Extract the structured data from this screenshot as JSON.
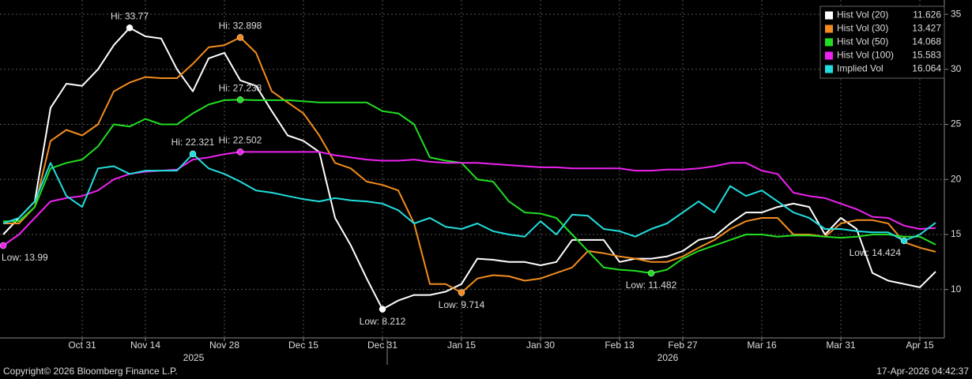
{
  "chart_data": {
    "type": "line",
    "categories": [
      null,
      null,
      null,
      null,
      null,
      "Oct 31",
      null,
      null,
      null,
      "Nov 14",
      null,
      null,
      null,
      null,
      "Nov 28",
      null,
      null,
      null,
      null,
      "Dec 15",
      null,
      null,
      null,
      null,
      "Dec 31",
      null,
      null,
      null,
      null,
      "Jan 15",
      null,
      null,
      null,
      null,
      "Jan 30",
      null,
      null,
      null,
      null,
      "Feb 13",
      null,
      null,
      null,
      "Feb 27",
      null,
      null,
      null,
      null,
      "Mar 16",
      null,
      null,
      null,
      null,
      "Mar 31",
      null,
      null,
      null,
      null,
      "Apr 15",
      null
    ],
    "years": [
      "2025",
      "2026"
    ],
    "series": [
      {
        "name": "Hist Vol (20)",
        "color": "#ffffff",
        "hi_label": "Hi: 33.77",
        "low_label": "Low: 8.212",
        "values": [
          15.0,
          16.5,
          18,
          26.5,
          28.7,
          28.5,
          30,
          32.2,
          33.77,
          33,
          32.8,
          30,
          28,
          31,
          31.5,
          29,
          28.5,
          26.2,
          24,
          23.5,
          22.5,
          16.5,
          14,
          11,
          8.212,
          9,
          9.5,
          9.5,
          9.8,
          10.5,
          12.8,
          12.7,
          12.5,
          12.5,
          12.2,
          12.5,
          14.5,
          14.5,
          14.5,
          12.5,
          12.8,
          12.8,
          13,
          13.5,
          14.5,
          14.8,
          16,
          17,
          17,
          17.5,
          17.8,
          17.5,
          15,
          16.5,
          15.5,
          11.5,
          10.8,
          10.5,
          10.2,
          11.626
        ]
      },
      {
        "name": "Hist Vol (30)",
        "color": "#f28c1e",
        "hi_label": "Hi: 32.898",
        "low_label": "Low: 9.714",
        "values": [
          16,
          16,
          17.5,
          23.5,
          24.5,
          24,
          25,
          28,
          28.8,
          29.3,
          29.2,
          29.2,
          30.5,
          32,
          32.2,
          32.898,
          31.5,
          28,
          27,
          26,
          24,
          21.5,
          21,
          19.8,
          19.5,
          19,
          16,
          10.5,
          10.5,
          9.714,
          11,
          11.3,
          11.2,
          10.8,
          11,
          11.5,
          12,
          13.5,
          13.3,
          13,
          12.8,
          12.5,
          12.5,
          13,
          13.8,
          14.5,
          15.5,
          16.2,
          16.5,
          16.5,
          15,
          15,
          14.8,
          16,
          16.3,
          16.3,
          16,
          14.3,
          13.8,
          13.427
        ]
      },
      {
        "name": "Hist Vol (50)",
        "color": "#22dd22",
        "hi_label": "Hi: 27.238",
        "low_label": "Low: 11.482",
        "values": [
          16.2,
          16.2,
          17.5,
          21,
          21.5,
          21.8,
          23,
          25,
          24.8,
          25.5,
          25,
          25,
          26,
          26.8,
          27.2,
          27.238,
          27.2,
          27.2,
          27.2,
          27.1,
          27,
          27,
          27,
          27,
          26.2,
          26,
          25,
          22,
          21.7,
          21.5,
          20,
          19.8,
          18,
          17,
          16.9,
          16.5,
          15,
          13.5,
          12,
          11.8,
          11.7,
          11.482,
          11.8,
          12.8,
          13.5,
          14,
          14.5,
          15,
          15,
          14.8,
          14.9,
          14.9,
          14.8,
          14.7,
          14.8,
          15,
          15,
          14.8,
          14.8,
          14.068
        ]
      },
      {
        "name": "Hist Vol (100)",
        "color": "#ee22ee",
        "hi_label": "Hi: 22.502",
        "low_label": "Low: 13.99",
        "values": [
          13.99,
          15,
          16.5,
          18,
          18.3,
          18.5,
          19,
          20,
          20.5,
          20.7,
          20.8,
          20.9,
          21.8,
          22,
          22.3,
          22.502,
          22.5,
          22.5,
          22.5,
          22.5,
          22.5,
          22.2,
          22,
          21.8,
          21.7,
          21.7,
          21.8,
          21.6,
          21.5,
          21.5,
          21.5,
          21.4,
          21.3,
          21.2,
          21.1,
          21.1,
          21,
          21,
          21,
          21,
          20.8,
          20.8,
          20.9,
          20.9,
          21,
          21.2,
          21.5,
          21.5,
          20.8,
          20.5,
          18.8,
          18.5,
          18.3,
          17.8,
          17.3,
          16.6,
          16.5,
          15.8,
          15.5,
          15.583
        ]
      },
      {
        "name": "Implied Vol",
        "color": "#22dddd",
        "hi_label": "Hi: 22.321",
        "low_label": "Low: 14.424",
        "values": [
          16,
          16.5,
          18,
          21.5,
          18.5,
          17.5,
          21,
          21.2,
          20.5,
          20.8,
          20.8,
          20.8,
          22.321,
          21,
          20.5,
          19.8,
          19,
          18.8,
          18.5,
          18.2,
          18,
          18.3,
          18.1,
          18,
          17.8,
          17.2,
          16,
          16.5,
          15.7,
          15.5,
          16,
          15.3,
          15,
          14.8,
          16.2,
          15,
          16.8,
          16.7,
          15.5,
          15.3,
          14.8,
          15.5,
          16,
          17,
          18,
          17,
          19.4,
          18.5,
          19,
          18,
          17,
          16.5,
          15.5,
          15.5,
          15.3,
          15.2,
          15.2,
          14.424,
          15,
          16.064
        ]
      }
    ],
    "ylim": [
      5.6,
      36.3
    ],
    "yticks": [
      10,
      15,
      20,
      25,
      30,
      35
    ],
    "grid": true,
    "legend": "top-right",
    "copyright": "Copyright© 2026 Bloomberg Finance L.P.",
    "timestamp": "17-Apr-2026 04:42:37"
  }
}
